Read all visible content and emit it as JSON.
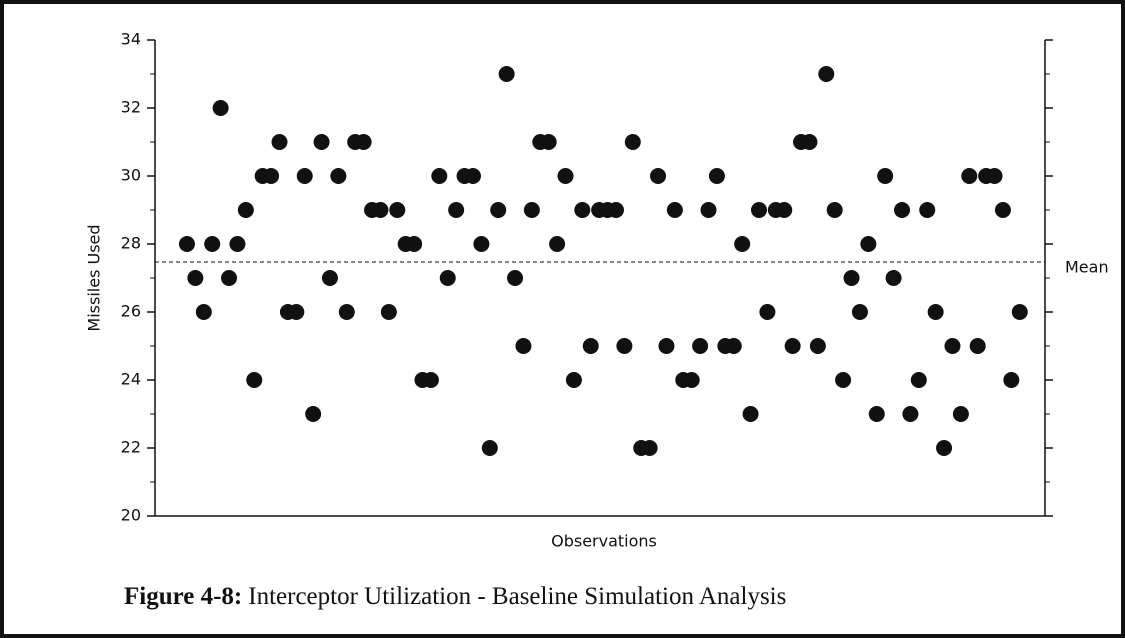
{
  "chart_data": {
    "type": "scatter",
    "y_label": "Missiles Used",
    "x_label": "Observations",
    "caption_label": "Figure 4-8:",
    "caption_text": "Interceptor Utilization - Baseline Simulation Analysis",
    "mean_label": "Mean",
    "mean": 27.47,
    "color": "#111111",
    "x": [
      1,
      2,
      3,
      4,
      5,
      6,
      7,
      8,
      9,
      10,
      11,
      12,
      13,
      14,
      15,
      16,
      17,
      18,
      19,
      20,
      21,
      22,
      23,
      24,
      25,
      26,
      27,
      28,
      29,
      30,
      31,
      32,
      33,
      34,
      35,
      36,
      37,
      38,
      39,
      40,
      41,
      42,
      43,
      44,
      45,
      46,
      47,
      48,
      49,
      50,
      51,
      52,
      53,
      54,
      55,
      56,
      57,
      58,
      59,
      60,
      61,
      62,
      63,
      64,
      65,
      66,
      67,
      68,
      69,
      70,
      71,
      72,
      73,
      74,
      75,
      76,
      77,
      78,
      79,
      80,
      81,
      82,
      83,
      84,
      85,
      86,
      87,
      88,
      89,
      90,
      91,
      92,
      93,
      94,
      95,
      96,
      97,
      98,
      99,
      100
    ],
    "values": [
      28,
      27,
      26,
      28,
      32,
      27,
      28,
      29,
      24,
      30,
      30,
      31,
      26,
      26,
      30,
      23,
      31,
      27,
      30,
      26,
      31,
      31,
      29,
      29,
      26,
      29,
      28,
      28,
      24,
      24,
      30,
      27,
      29,
      30,
      30,
      28,
      22,
      29,
      33,
      27,
      25,
      29,
      31,
      31,
      28,
      30,
      24,
      29,
      25,
      29,
      29,
      29,
      25,
      31,
      22,
      22,
      30,
      25,
      29,
      24,
      24,
      25,
      29,
      30,
      25,
      25,
      28,
      23,
      29,
      26,
      29,
      29,
      25,
      31,
      31,
      25,
      33,
      29,
      24,
      27,
      26,
      28,
      23,
      30,
      27,
      29,
      23,
      24,
      29,
      26,
      22,
      25,
      23,
      30,
      25,
      30,
      30,
      29,
      24,
      26
    ],
    "xlim": [
      -2.8,
      103
    ],
    "ylim": [
      20,
      34
    ],
    "yticks": [
      20,
      22,
      24,
      26,
      28,
      30,
      32,
      34
    ],
    "yminor_ticks": [
      21,
      23,
      25,
      27,
      29,
      31,
      33
    ]
  }
}
